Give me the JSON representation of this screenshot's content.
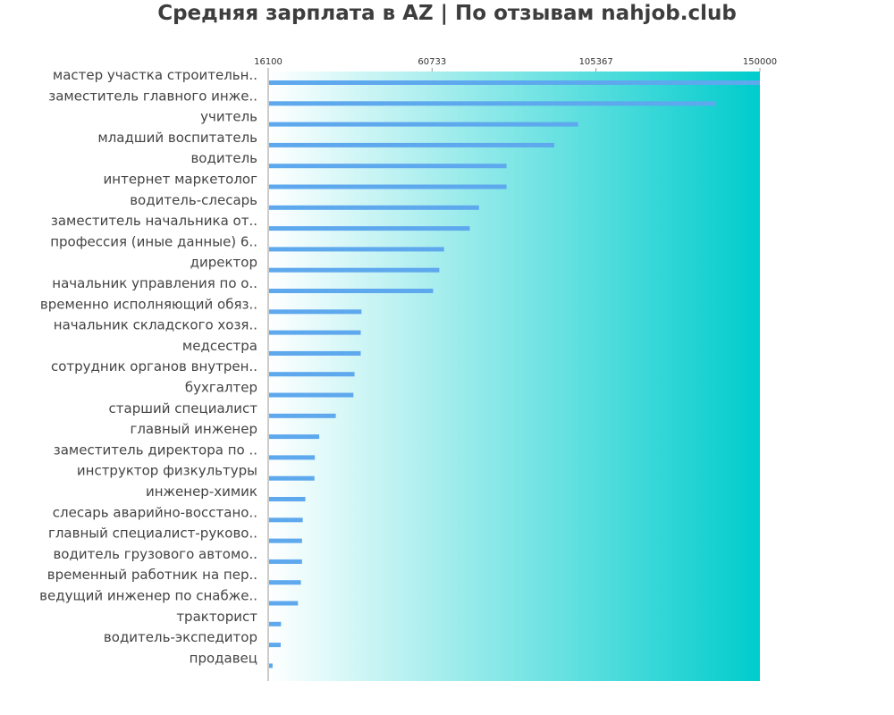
{
  "colors": {
    "bar": "#5ea8ee",
    "gradient_start": "#ffffff",
    "gradient_end": "#00cccc",
    "axis": "#999999",
    "label_text": "#444444",
    "tick_text": "#333333",
    "title_text": "#3d3d3d"
  },
  "chart_data": {
    "type": "bar",
    "orientation": "horizontal",
    "title": "Средняя зарплата в AZ | По отзывам nahjob.club",
    "xlabel": "",
    "ylabel": "",
    "xlim": [
      16100,
      150000
    ],
    "x_ticks": [
      "16100",
      "60733",
      "105367",
      "150000"
    ],
    "grid": false,
    "legend": "none",
    "categories": [
      "мастер участка строительн..",
      "заместитель главного инже..",
      "учитель",
      "младший воспитатель",
      "водитель",
      "интернет маркетолог",
      "водитель-слесарь",
      "заместитель начальника от..",
      "профессия (иные данные) 6..",
      "директор",
      "начальник управления по о..",
      "временно исполняющий обяз..",
      "начальник складского хозя..",
      "медсестра",
      "сотрудник органов внутрен..",
      "бухгалтер",
      "старший специалист",
      "главный инженер",
      "заместитель директора по ..",
      "инструктор физкультуры",
      "инженер-химик",
      "слесарь аварийно-восстано..",
      "главный специалист-руково..",
      "водитель грузового автомо..",
      "временный работник на пер..",
      "ведущий инженер по снабже..",
      "тракторист",
      "водитель-экспедитор",
      "продавец"
    ],
    "values": [
      150000,
      138000,
      100500,
      94000,
      81000,
      81000,
      73500,
      71000,
      64000,
      62700,
      61000,
      41500,
      41300,
      41300,
      39600,
      39300,
      34500,
      30000,
      28800,
      28700,
      26200,
      25500,
      25300,
      25300,
      25000,
      24200,
      19600,
      19500,
      17300
    ]
  }
}
